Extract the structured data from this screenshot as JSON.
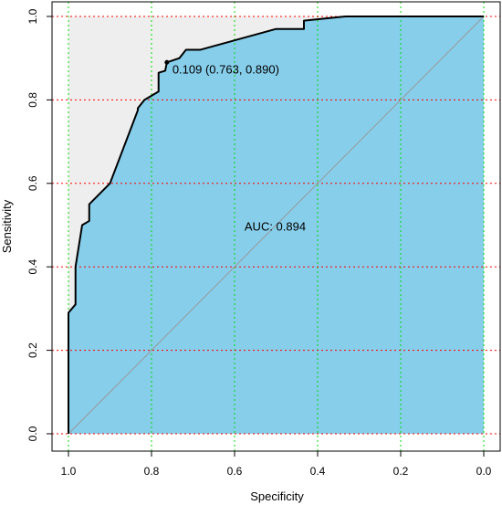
{
  "chart_data": {
    "type": "line",
    "xlabel": "Specificity",
    "ylabel": "Sensitivity",
    "xlim": [
      1.0,
      0.0
    ],
    "ylim": [
      0.0,
      1.0
    ],
    "x_reversed": true,
    "xticks": [
      "1.0",
      "0.8",
      "0.6",
      "0.4",
      "0.2",
      "0.0"
    ],
    "yticks": [
      "0.0",
      "0.2",
      "0.4",
      "0.6",
      "0.8",
      "1.0"
    ],
    "grid": {
      "x": true,
      "y": true,
      "x_color": "#00dd00",
      "y_color": "#ff0000",
      "style": "dotted"
    },
    "series": [
      {
        "x": [
          1.0,
          1.0,
          0.983,
          0.983,
          0.967,
          0.95,
          0.95,
          0.9,
          0.833,
          0.833,
          0.817,
          0.783,
          0.783,
          0.767,
          0.763,
          0.733,
          0.717,
          0.683,
          0.5,
          0.5,
          0.433,
          0.433,
          0.333,
          0.0
        ],
        "y": [
          0.0,
          0.29,
          0.31,
          0.4,
          0.5,
          0.51,
          0.55,
          0.6,
          0.775,
          0.78,
          0.8,
          0.82,
          0.865,
          0.87,
          0.89,
          0.9,
          0.92,
          0.92,
          0.97,
          0.97,
          0.97,
          0.99,
          1.0,
          1.0
        ]
      }
    ],
    "best_threshold": {
      "x": 0.763,
      "y": 0.89,
      "label": "0.109 (0.763, 0.890)"
    },
    "auc_label": "AUC: 0.894",
    "colors": {
      "auc_fill": "#87ceeb",
      "max_auc_fill": "#eeeeee",
      "curve": "#000000",
      "diagonal": "#999999"
    }
  }
}
